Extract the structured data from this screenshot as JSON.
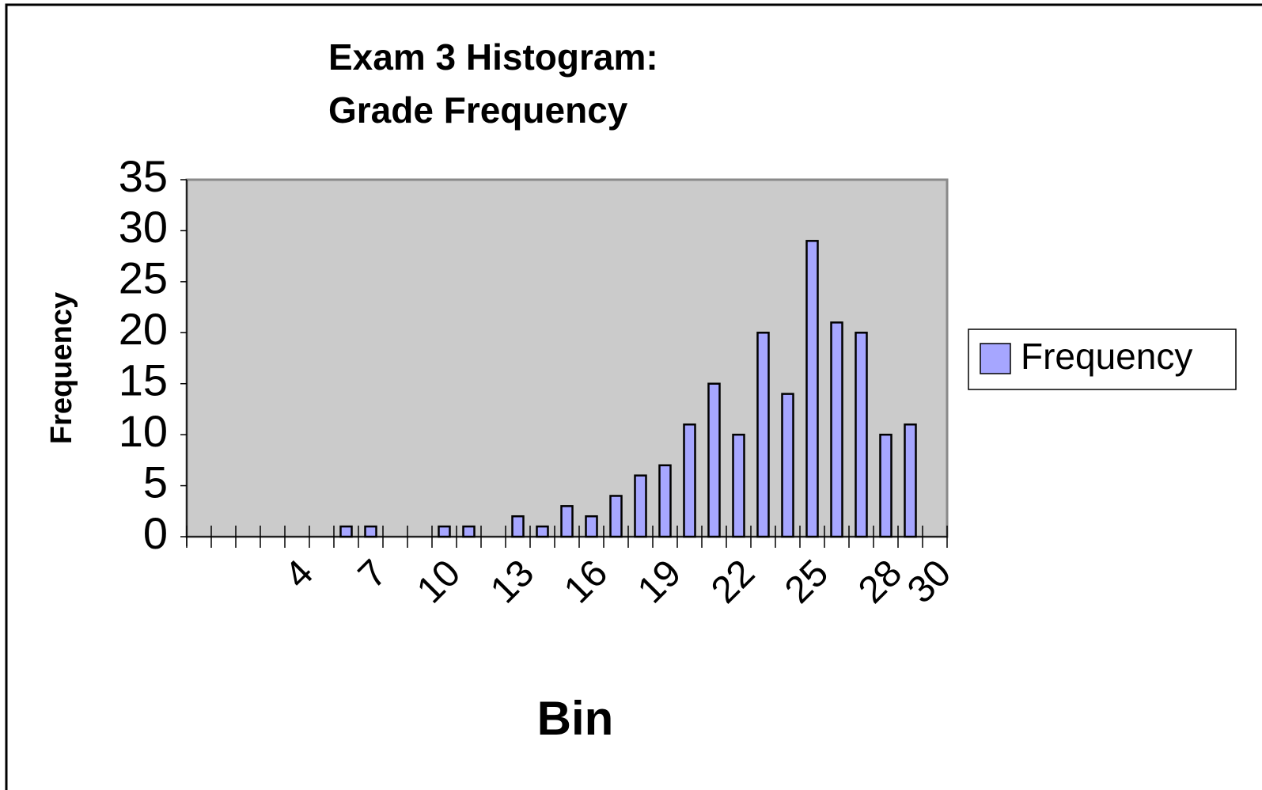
{
  "chart_data": {
    "type": "bar",
    "title": [
      "Exam 3 Histogram:",
      "Grade Frequency"
    ],
    "x_label": "Bin",
    "y_label": "Frequency",
    "categories": [
      null,
      null,
      null,
      null,
      4,
      null,
      null,
      7,
      null,
      null,
      10,
      null,
      null,
      13,
      null,
      null,
      16,
      null,
      null,
      19,
      null,
      null,
      22,
      null,
      null,
      25,
      null,
      null,
      28,
      null,
      30
    ],
    "series": [
      {
        "name": "Frequency",
        "color": "#a6a6ff",
        "values": [
          0,
          0,
          0,
          0,
          0,
          0,
          1,
          1,
          0,
          0,
          1,
          1,
          0,
          2,
          1,
          3,
          2,
          4,
          6,
          7,
          11,
          15,
          10,
          20,
          14,
          29,
          21,
          20,
          10,
          11,
          0
        ]
      }
    ],
    "ylim": [
      0,
      35
    ],
    "yticks": [
      0,
      5,
      10,
      15,
      20,
      25,
      30,
      35
    ],
    "legend": "right"
  }
}
